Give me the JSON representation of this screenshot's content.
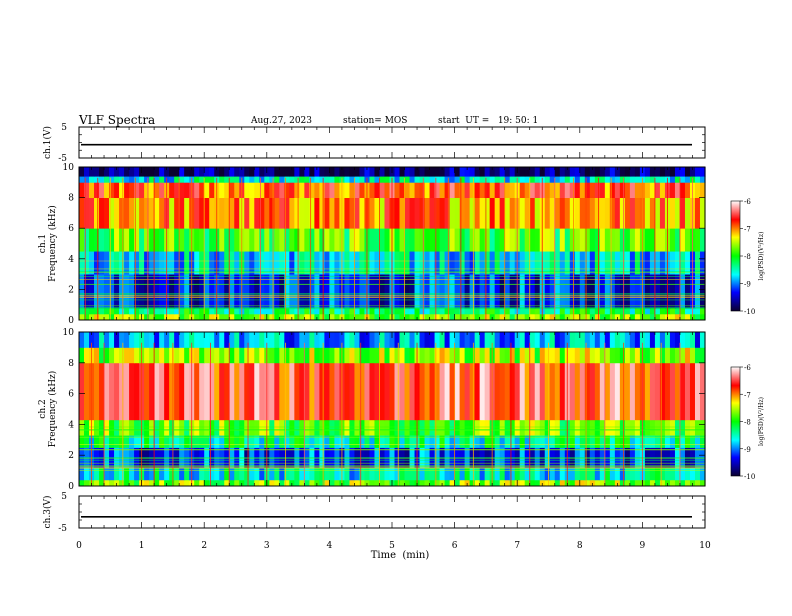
{
  "header": {
    "title": "VLF Spectra",
    "date": "Aug.27, 2023",
    "station": "station= MOS",
    "start": "start  UT =   19: 50: 1"
  },
  "colors": {
    "colormap": [
      "#0b0030",
      "#0000ff",
      "#00ffff",
      "#00ff00",
      "#ffff00",
      "#ff0000",
      "#ffffff"
    ]
  },
  "chart_data": [
    {
      "type": "line",
      "ylabel": "ch.1(V)",
      "xlim": [
        0,
        10
      ],
      "ylim": [
        -5,
        5
      ],
      "yticks": [
        "5",
        "-5"
      ],
      "value": -0.7
    },
    {
      "type": "heatmap",
      "ylabel": "ch.1\nFrequency (kHz)",
      "ylim": [
        0,
        10
      ],
      "xlim": [
        0,
        10
      ],
      "yticks": [
        "0",
        "2",
        "4",
        "6",
        "8",
        "10"
      ],
      "colorbar": {
        "label": "log(PSD)(V²/Hz)",
        "ticks": [
          "-6",
          "-7",
          "-8",
          "-9",
          "-10"
        ],
        "range": [
          -10,
          -6
        ]
      },
      "bands": [
        {
          "f": [
            0.0,
            0.4
          ],
          "level": -7.7
        },
        {
          "f": [
            0.4,
            0.8
          ],
          "level": -8.3
        },
        {
          "f": [
            0.8,
            3.0
          ],
          "level": -9.3
        },
        {
          "f": [
            3.0,
            4.5
          ],
          "level": -8.7
        },
        {
          "f": [
            4.5,
            6.0
          ],
          "level": -7.9
        },
        {
          "f": [
            6.0,
            8.0
          ],
          "level": -7.0
        },
        {
          "f": [
            8.0,
            9.0
          ],
          "level": -6.8
        },
        {
          "f": [
            9.0,
            9.4
          ],
          "level": -8.6
        },
        {
          "f": [
            9.4,
            10.0
          ],
          "level": -9.8
        }
      ],
      "spikes_t": [
        0.1,
        0.3,
        0.5,
        0.7,
        0.9,
        1.1,
        1.2,
        1.4,
        1.6,
        1.8,
        2.0,
        2.2,
        2.4,
        2.6,
        2.9,
        3.1,
        3.3,
        3.5,
        3.7,
        3.9,
        4.2,
        4.4,
        4.6,
        4.8,
        5.0,
        5.2,
        5.5,
        5.7,
        5.9,
        6.1,
        6.3,
        6.5,
        6.8,
        7.0,
        7.2,
        7.4,
        7.6,
        7.9,
        8.1,
        8.3,
        8.5,
        8.7,
        9.0,
        9.2,
        9.4,
        9.6,
        9.8
      ]
    },
    {
      "type": "heatmap",
      "ylabel": "ch.2\nFrequency (kHz)",
      "ylim": [
        0,
        10
      ],
      "xlim": [
        0,
        10
      ],
      "yticks": [
        "0",
        "2",
        "4",
        "6",
        "8",
        "10"
      ],
      "colorbar": {
        "label": "log(PSD)(V²/Hz)",
        "ticks": [
          "-6",
          "-7",
          "-8",
          "-9",
          "-10"
        ],
        "range": [
          -10,
          -6
        ]
      },
      "bands": [
        {
          "f": [
            0.0,
            0.4
          ],
          "level": -7.7
        },
        {
          "f": [
            0.4,
            1.2
          ],
          "level": -8.6
        },
        {
          "f": [
            1.2,
            2.5
          ],
          "level": -9.2
        },
        {
          "f": [
            2.5,
            3.3
          ],
          "level": -8.4
        },
        {
          "f": [
            3.3,
            4.3
          ],
          "level": -7.8
        },
        {
          "f": [
            4.3,
            8.0
          ],
          "level": -6.6
        },
        {
          "f": [
            8.0,
            9.0
          ],
          "level": -7.6
        },
        {
          "f": [
            9.0,
            10.0
          ],
          "level": -8.9
        }
      ],
      "spikes_t": [
        0.2,
        0.4,
        0.7,
        1.0,
        1.2,
        1.5,
        1.8,
        2.1,
        2.4,
        2.7,
        3.0,
        3.3,
        3.6,
        3.9,
        4.2,
        4.5,
        4.8,
        5.1,
        5.4,
        5.7,
        6.0,
        6.3,
        6.6,
        6.9,
        7.2,
        7.5,
        7.8,
        8.1,
        8.4,
        8.7,
        9.0,
        9.3,
        9.6
      ]
    },
    {
      "type": "line",
      "ylabel": "ch.3(V)",
      "xlim": [
        0,
        10
      ],
      "ylim": [
        -5,
        5
      ],
      "yticks": [
        "5",
        "-5"
      ],
      "value": -1.5,
      "xlabel": "Time  (min)",
      "xticks": [
        "0",
        "1",
        "2",
        "3",
        "4",
        "5",
        "6",
        "7",
        "8",
        "9",
        "10"
      ]
    }
  ]
}
